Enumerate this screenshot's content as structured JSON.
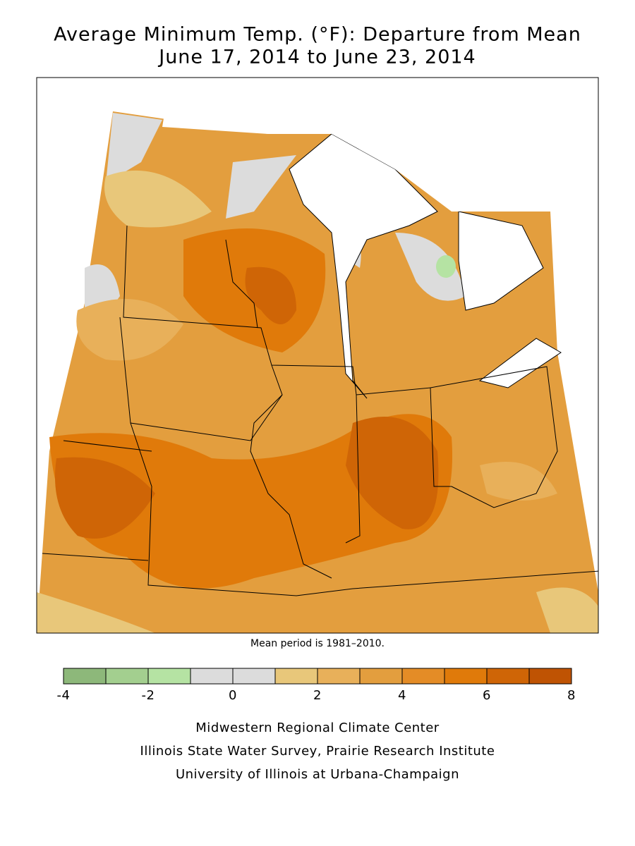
{
  "title": [
    "Average Minimum Temp. (°F): Departure from Mean",
    "June 17, 2014 to June 23, 2014"
  ],
  "note": "Mean period is 1981–2010.",
  "legend": {
    "bins": [
      -4,
      -3,
      -2,
      -1,
      0,
      1,
      2,
      3,
      4,
      5,
      6,
      7,
      8
    ],
    "colors": [
      "#8db87a",
      "#a3cf8f",
      "#b5e3a3",
      "#dcdcdc",
      "#dcdcdc",
      "#e8c77a",
      "#e8b05a",
      "#e39e3e",
      "#e48c26",
      "#e07a0a",
      "#cf6506",
      "#bf5303"
    ],
    "ticks": [
      -4,
      -2,
      0,
      2,
      4,
      6,
      8
    ]
  },
  "credits": [
    "Midwestern Regional Climate Center",
    "Illinois State Water Survey, Prairie Research Institute",
    "University of Illinois at Urbana-Champaign"
  ]
}
